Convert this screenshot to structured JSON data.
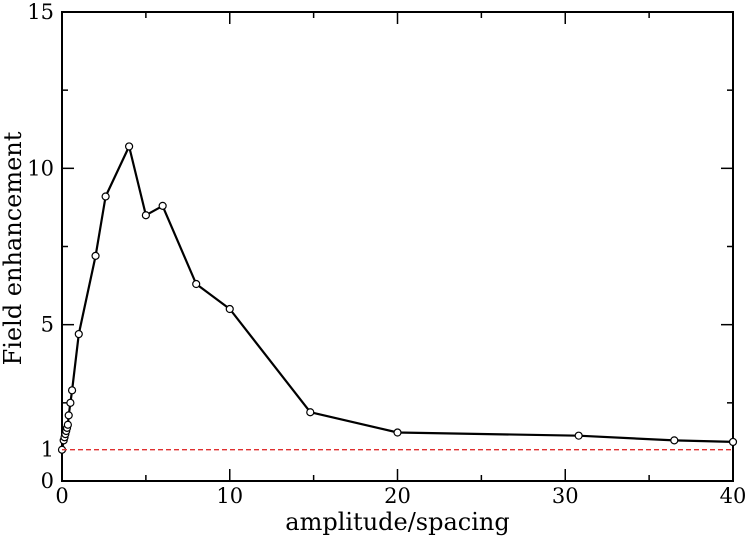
{
  "chart_data": {
    "type": "line",
    "title": "",
    "xlabel": "amplitude/spacing",
    "ylabel": "Field enhancement",
    "xlim": [
      0,
      40
    ],
    "ylim": [
      0,
      15
    ],
    "xticks": [
      "0",
      "10",
      "20",
      "30",
      "40"
    ],
    "yticks": [
      "0",
      "1",
      "5",
      "10",
      "15"
    ],
    "grid": false,
    "series": [
      {
        "style": "solid",
        "marker": "circle",
        "color": "#000000",
        "x": [
          0.0,
          0.1,
          0.15,
          0.2,
          0.25,
          0.3,
          0.35,
          0.4,
          0.5,
          0.6,
          1.0,
          2.0,
          2.6,
          4.0,
          5.0,
          6.0,
          8.0,
          10.0,
          14.8,
          20.0,
          30.8,
          36.5,
          40.0
        ],
        "y": [
          1.0,
          1.3,
          1.4,
          1.5,
          1.6,
          1.7,
          1.8,
          2.1,
          2.5,
          2.9,
          4.7,
          7.2,
          9.1,
          10.7,
          8.5,
          8.8,
          6.3,
          5.5,
          2.2,
          1.55,
          1.45,
          1.3,
          1.25
        ]
      },
      {
        "style": "dashed",
        "marker": "none",
        "color": "#e03030",
        "x": [
          0,
          40
        ],
        "y": [
          1,
          1
        ]
      }
    ]
  }
}
